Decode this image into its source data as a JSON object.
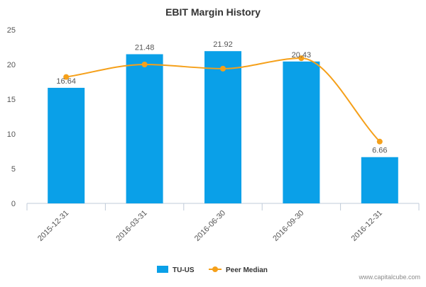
{
  "chart_data": {
    "type": "bar",
    "title": "EBIT Margin History",
    "categories": [
      "2015-12-31",
      "2016-03-31",
      "2016-06-30",
      "2016-09-30",
      "2016-12-31"
    ],
    "series": [
      {
        "name": "TU-US",
        "type": "bar",
        "color": "#0aa0e8",
        "values": [
          16.64,
          21.48,
          21.92,
          20.43,
          6.66
        ],
        "data_labels": [
          "16.64",
          "21.48",
          "21.92",
          "20.43",
          "6.66"
        ]
      },
      {
        "name": "Peer Median",
        "type": "line",
        "color": "#f5a01a",
        "values": [
          18.2,
          20.0,
          19.4,
          20.9,
          8.9
        ]
      }
    ],
    "ylim": [
      0,
      25
    ],
    "yticks": [
      0,
      5,
      10,
      15,
      20,
      25
    ],
    "ytick_labels": [
      "0",
      "5",
      "10",
      "15",
      "20",
      "25"
    ],
    "grid": false,
    "legend_position": "bottom-center"
  },
  "watermark": "www.capitalcube.com"
}
